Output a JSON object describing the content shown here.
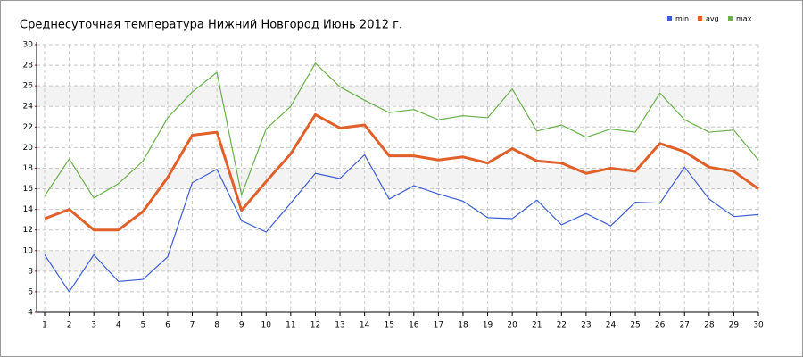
{
  "chart_data": {
    "type": "line",
    "title": "Среднесуточная температура Нижний Новгород  Июнь 2012 г.",
    "x": [
      1,
      2,
      3,
      4,
      5,
      6,
      7,
      8,
      9,
      10,
      11,
      12,
      13,
      14,
      15,
      16,
      17,
      18,
      19,
      20,
      21,
      22,
      23,
      24,
      25,
      26,
      27,
      28,
      29,
      30
    ],
    "series": [
      {
        "name": "min",
        "color": "#3f5fd0",
        "values": [
          9.6,
          6.0,
          9.6,
          7.0,
          7.2,
          9.4,
          16.6,
          17.9,
          12.9,
          11.8,
          14.6,
          17.5,
          17.0,
          19.3,
          15.0,
          16.3,
          15.5,
          14.8,
          13.2,
          13.1,
          14.9,
          12.5,
          13.6,
          12.4,
          14.7,
          14.6,
          18.1,
          15.0,
          13.3,
          13.5
        ]
      },
      {
        "name": "avg",
        "color": "#e0602a",
        "values": [
          13.1,
          14.0,
          12.0,
          12.0,
          13.8,
          17.1,
          21.2,
          21.5,
          13.9,
          16.7,
          19.4,
          23.2,
          21.9,
          22.2,
          19.2,
          19.2,
          18.8,
          19.1,
          18.5,
          19.9,
          18.7,
          18.5,
          17.5,
          18.0,
          17.7,
          20.4,
          19.6,
          18.1,
          17.7,
          16.0
        ]
      },
      {
        "name": "max",
        "color": "#6ab04c",
        "values": [
          15.3,
          18.9,
          15.1,
          16.5,
          18.7,
          22.9,
          25.4,
          27.3,
          15.4,
          21.8,
          24.0,
          28.2,
          25.9,
          24.6,
          23.4,
          23.7,
          22.7,
          23.1,
          22.9,
          25.7,
          21.6,
          22.2,
          21.0,
          21.8,
          21.5,
          25.3,
          22.7,
          21.5,
          21.7,
          18.8
        ]
      }
    ],
    "xlim": [
      1,
      30
    ],
    "xticks": [
      1,
      2,
      3,
      4,
      5,
      6,
      7,
      8,
      9,
      10,
      11,
      12,
      13,
      14,
      15,
      16,
      17,
      18,
      19,
      20,
      21,
      22,
      23,
      24,
      25,
      26,
      27,
      28,
      29,
      30
    ],
    "ylim": [
      4,
      30
    ],
    "yticks": [
      4,
      6,
      8,
      10,
      12,
      14,
      16,
      18,
      20,
      22,
      24,
      26,
      28,
      30
    ],
    "grid": true,
    "legend": "top-right"
  }
}
